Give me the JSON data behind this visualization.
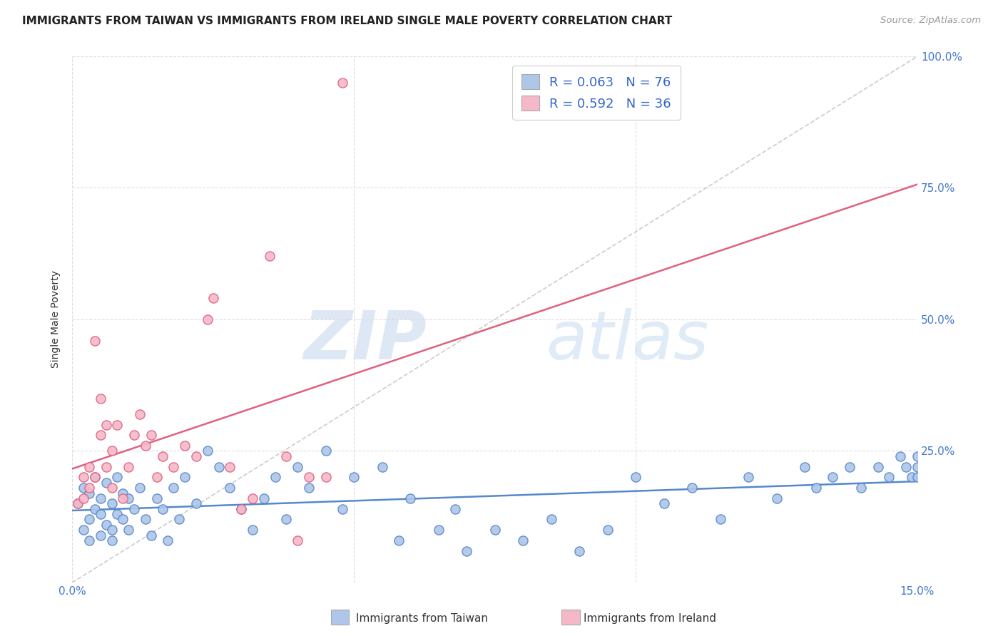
{
  "title": "IMMIGRANTS FROM TAIWAN VS IMMIGRANTS FROM IRELAND SINGLE MALE POVERTY CORRELATION CHART",
  "source": "Source: ZipAtlas.com",
  "ylabel": "Single Male Poverty",
  "legend_taiwan": "Immigrants from Taiwan",
  "legend_ireland": "Immigrants from Ireland",
  "taiwan_R": "0.063",
  "taiwan_N": "76",
  "ireland_R": "0.592",
  "ireland_N": "36",
  "xlim": [
    0.0,
    0.15
  ],
  "ylim": [
    0.0,
    1.0
  ],
  "color_taiwan": "#aec6e8",
  "color_ireland": "#f5b8c8",
  "line_color_taiwan": "#5588cc",
  "line_color_ireland": "#e06080",
  "diagonal_color": "#cccccc",
  "taiwan_x": [
    0.001,
    0.002,
    0.002,
    0.003,
    0.003,
    0.003,
    0.004,
    0.004,
    0.005,
    0.005,
    0.005,
    0.006,
    0.006,
    0.007,
    0.007,
    0.007,
    0.008,
    0.008,
    0.009,
    0.009,
    0.01,
    0.01,
    0.011,
    0.012,
    0.013,
    0.014,
    0.015,
    0.016,
    0.017,
    0.018,
    0.019,
    0.02,
    0.022,
    0.024,
    0.026,
    0.028,
    0.03,
    0.032,
    0.034,
    0.036,
    0.038,
    0.04,
    0.042,
    0.045,
    0.048,
    0.05,
    0.055,
    0.058,
    0.06,
    0.065,
    0.068,
    0.07,
    0.075,
    0.08,
    0.085,
    0.09,
    0.095,
    0.1,
    0.105,
    0.11,
    0.115,
    0.12,
    0.125,
    0.13,
    0.132,
    0.135,
    0.138,
    0.14,
    0.143,
    0.145,
    0.147,
    0.148,
    0.149,
    0.15,
    0.15,
    0.15
  ],
  "taiwan_y": [
    0.15,
    0.1,
    0.18,
    0.08,
    0.12,
    0.17,
    0.14,
    0.2,
    0.13,
    0.09,
    0.16,
    0.11,
    0.19,
    0.1,
    0.15,
    0.08,
    0.13,
    0.2,
    0.12,
    0.17,
    0.16,
    0.1,
    0.14,
    0.18,
    0.12,
    0.09,
    0.16,
    0.14,
    0.08,
    0.18,
    0.12,
    0.2,
    0.15,
    0.25,
    0.22,
    0.18,
    0.14,
    0.1,
    0.16,
    0.2,
    0.12,
    0.22,
    0.18,
    0.25,
    0.14,
    0.2,
    0.22,
    0.08,
    0.16,
    0.1,
    0.14,
    0.06,
    0.1,
    0.08,
    0.12,
    0.06,
    0.1,
    0.2,
    0.15,
    0.18,
    0.12,
    0.2,
    0.16,
    0.22,
    0.18,
    0.2,
    0.22,
    0.18,
    0.22,
    0.2,
    0.24,
    0.22,
    0.2,
    0.22,
    0.24,
    0.2
  ],
  "ireland_x": [
    0.001,
    0.002,
    0.002,
    0.003,
    0.003,
    0.004,
    0.004,
    0.005,
    0.005,
    0.006,
    0.006,
    0.007,
    0.007,
    0.008,
    0.009,
    0.01,
    0.011,
    0.012,
    0.013,
    0.014,
    0.015,
    0.016,
    0.018,
    0.02,
    0.022,
    0.024,
    0.025,
    0.028,
    0.03,
    0.032,
    0.035,
    0.038,
    0.04,
    0.042,
    0.045,
    0.048
  ],
  "ireland_y": [
    0.15,
    0.16,
    0.2,
    0.18,
    0.22,
    0.46,
    0.2,
    0.28,
    0.35,
    0.22,
    0.3,
    0.18,
    0.25,
    0.3,
    0.16,
    0.22,
    0.28,
    0.32,
    0.26,
    0.28,
    0.2,
    0.24,
    0.22,
    0.26,
    0.24,
    0.5,
    0.54,
    0.22,
    0.14,
    0.16,
    0.62,
    0.24,
    0.08,
    0.2,
    0.2,
    0.95
  ],
  "watermark_zip": "ZIP",
  "watermark_atlas": "atlas",
  "background_color": "#ffffff"
}
